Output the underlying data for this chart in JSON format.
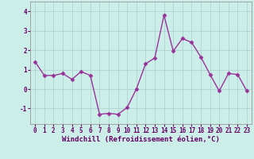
{
  "x": [
    0,
    1,
    2,
    3,
    4,
    5,
    6,
    7,
    8,
    9,
    10,
    11,
    12,
    13,
    14,
    15,
    16,
    17,
    18,
    19,
    20,
    21,
    22,
    23
  ],
  "y": [
    1.4,
    0.7,
    0.7,
    0.8,
    0.5,
    0.9,
    0.7,
    -1.3,
    -1.25,
    -1.3,
    -0.95,
    0.0,
    1.3,
    1.6,
    3.8,
    1.95,
    2.6,
    2.4,
    1.65,
    0.75,
    -0.1,
    0.8,
    0.75,
    -0.1
  ],
  "line_color": "#993399",
  "marker": "D",
  "markersize": 2.5,
  "linewidth": 1.0,
  "bg_color": "#cceee8",
  "grid_color": "#aacccc",
  "xlabel": "Windchill (Refroidissement éolien,°C)",
  "ylim": [
    -1.8,
    4.5
  ],
  "xlim": [
    -0.5,
    23.5
  ],
  "yticks": [
    -1,
    0,
    1,
    2,
    3,
    4
  ],
  "xticks": [
    0,
    1,
    2,
    3,
    4,
    5,
    6,
    7,
    8,
    9,
    10,
    11,
    12,
    13,
    14,
    15,
    16,
    17,
    18,
    19,
    20,
    21,
    22,
    23
  ],
  "tick_labelsize": 5.5,
  "xlabel_fontsize": 6.5
}
